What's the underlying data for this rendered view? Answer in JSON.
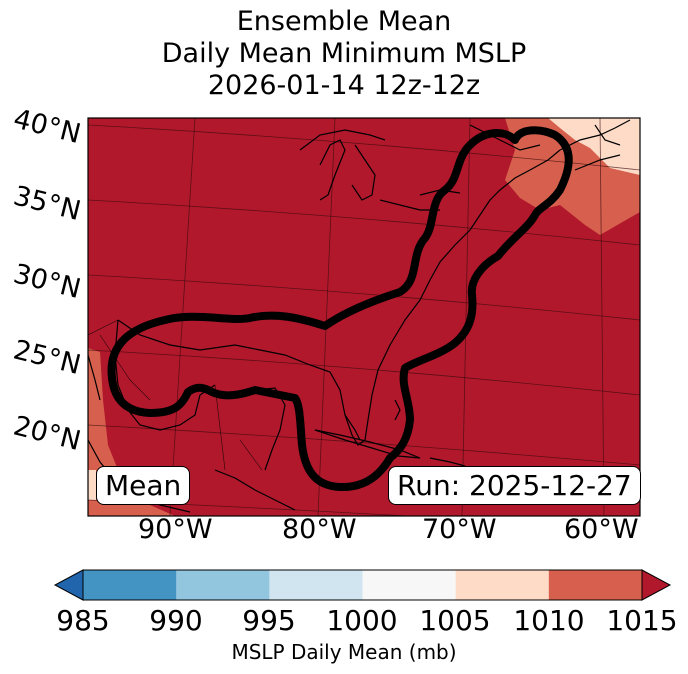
{
  "title": {
    "line1": "Ensemble Mean",
    "line2": "Daily Mean Minimum MSLP",
    "line3": "2026-01-14 12z-12z"
  },
  "map": {
    "lat_labels": [
      "40°N",
      "35°N",
      "30°N",
      "25°N",
      "20°N"
    ],
    "lon_labels": [
      "90°W",
      "80°W",
      "70°W",
      "60°W"
    ],
    "mean_box": "Mean",
    "run_box": "Run: 2025-12-27"
  },
  "colorbar": {
    "ticks": [
      "985",
      "990",
      "995",
      "1000",
      "1005",
      "1010",
      "1015"
    ],
    "label": "MSLP Daily Mean (mb)",
    "colors": [
      "#2166ac",
      "#4393c3",
      "#92c5de",
      "#d1e5f0",
      "#f7f7f7",
      "#fddbc7",
      "#d6604d",
      "#b2182b"
    ]
  }
}
